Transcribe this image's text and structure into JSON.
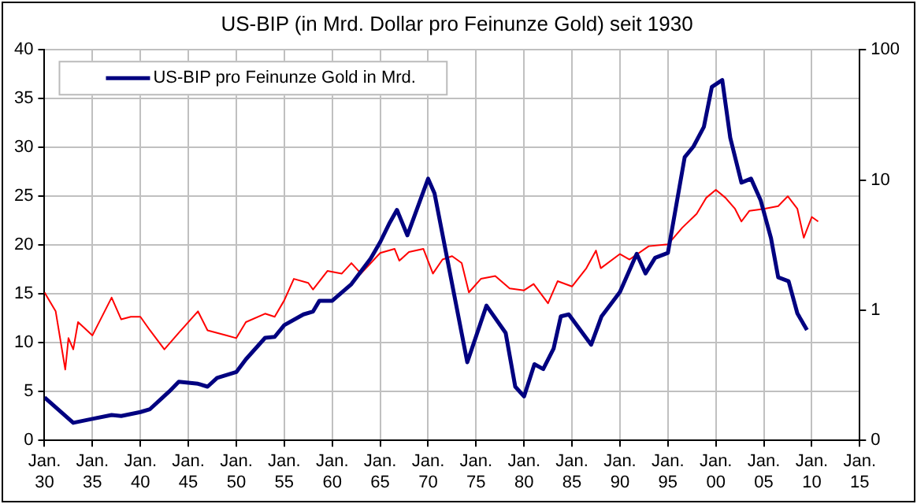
{
  "chart_data": {
    "type": "line",
    "title": "US-BIP (in Mrd. Dollar pro Feinunze Gold) seit 1930",
    "xlim": [
      "1930-01",
      "2015-01"
    ],
    "xticks": [
      {
        "value": "1930-01",
        "label": "Jan. 30"
      },
      {
        "value": "1935-01",
        "label": "Jan. 35"
      },
      {
        "value": "1940-01",
        "label": "Jan. 40"
      },
      {
        "value": "1945-01",
        "label": "Jan. 45"
      },
      {
        "value": "1950-01",
        "label": "Jan. 50"
      },
      {
        "value": "1955-01",
        "label": "Jan. 55"
      },
      {
        "value": "1960-01",
        "label": "Jan. 60"
      },
      {
        "value": "1965-01",
        "label": "Jan. 65"
      },
      {
        "value": "1970-01",
        "label": "Jan. 70"
      },
      {
        "value": "1975-01",
        "label": "Jan. 75"
      },
      {
        "value": "1980-01",
        "label": "Jan. 80"
      },
      {
        "value": "1985-01",
        "label": "Jan. 85"
      },
      {
        "value": "1990-01",
        "label": "Jan. 90"
      },
      {
        "value": "1995-01",
        "label": "Jan. 95"
      },
      {
        "value": "2000-01",
        "label": "Jan. 00"
      },
      {
        "value": "2005-01",
        "label": "Jan. 05"
      },
      {
        "value": "2010-01",
        "label": "Jan. 10"
      },
      {
        "value": "2015-01",
        "label": "Jan. 15"
      }
    ],
    "ylim": [
      0,
      40
    ],
    "yticks": [
      0,
      5,
      10,
      15,
      20,
      25,
      30,
      35,
      40
    ],
    "y2lim": [
      0.1,
      100
    ],
    "y2ticks": [
      {
        "value": 0.1,
        "label": "0"
      },
      1,
      10,
      100
    ],
    "log": "y2",
    "grid": true,
    "legend": "top left",
    "series": [
      {
        "name": "US-BIP pro Feinunze Gold in Mrd.",
        "color": "#000080",
        "x": [
          "1930-01",
          "1933-01",
          "1935-01",
          "1937-01",
          "1938-01",
          "1940-01",
          "1941-01",
          "1943-01",
          "1944-01",
          "1946-01",
          "1947-01",
          "1948-01",
          "1950-01",
          "1951-01",
          "1953-01",
          "1954-01",
          "1955-01",
          "1957-01",
          "1958-01",
          "1958-09",
          "1960-01",
          "1962-01",
          "1964-01",
          "1965-01",
          "1966-01",
          "1966-10",
          "1967-11",
          "1970-01",
          "1970-09",
          "1974-02",
          "1976-02",
          "1978-02",
          "1979-02",
          "1980-01",
          "1981-02",
          "1982-01",
          "1983-02",
          "1983-11",
          "1984-09",
          "1987-01",
          "1988-02",
          "1990-01",
          "1991-10",
          "1992-09",
          "1993-09",
          "1995-01",
          "1996-10",
          "1997-09",
          "1998-10",
          "1999-08",
          "2000-09",
          "2001-07",
          "2002-09",
          "2003-09",
          "2004-09",
          "2005-10",
          "2006-07",
          "2007-08",
          "2008-07",
          "2009-07"
        ],
        "values": [
          4.4,
          1.8,
          2.2,
          2.6,
          2.5,
          2.9,
          3.2,
          5,
          6,
          5.8,
          5.5,
          6.4,
          7,
          8.3,
          10.5,
          10.6,
          11.8,
          12.9,
          13.2,
          14.3,
          14.3,
          16,
          18.6,
          20.3,
          22.3,
          23.6,
          21,
          26.8,
          25.3,
          8,
          13.8,
          11,
          5.5,
          4.5,
          7.8,
          7.3,
          9.4,
          12.7,
          12.9,
          9.8,
          12.7,
          15.2,
          19.1,
          17.1,
          18.7,
          19.2,
          29,
          30.1,
          32.1,
          36.2,
          36.9,
          31,
          26.4,
          26.8,
          24.6,
          20.7,
          16.7,
          16.3,
          13,
          11.3
        ]
      },
      {
        "color": "#ff0000",
        "axis": "y2",
        "x": [
          "1930-01",
          "1931-03",
          "1932-03",
          "1932-07",
          "1933-01",
          "1933-07",
          "1935-01",
          "1937-01",
          "1938-01",
          "1939-01",
          "1940-01",
          "1941-01",
          "1942-07",
          "1944-01",
          "1946-01",
          "1947-01",
          "1949-01",
          "1950-01",
          "1951-01",
          "1953-01",
          "1954-01",
          "1955-01",
          "1956-01",
          "1957-07",
          "1958-01",
          "1959-07",
          "1961-01",
          "1962-01",
          "1963-01",
          "1965-01",
          "1966-07",
          "1967-01",
          "1968-01",
          "1969-07",
          "1970-07",
          "1971-07",
          "1972-07",
          "1973-07",
          "1974-04",
          "1975-07",
          "1977-01",
          "1978-07",
          "1980-01",
          "1981-01",
          "1982-07",
          "1983-07",
          "1985-01",
          "1986-07",
          "1987-07",
          "1988-01",
          "1990-01",
          "1991-01",
          "1993-01",
          "1995-01",
          "1996-07",
          "1998-01",
          "1999-01",
          "2000-01",
          "2001-01",
          "2002-01",
          "2002-09",
          "2003-07",
          "2005-01",
          "2006-07",
          "2007-07",
          "2008-07",
          "2009-03",
          "2010-01",
          "2010-09"
        ],
        "values": [
          1.37,
          0.98,
          0.35,
          0.61,
          0.5,
          0.81,
          0.64,
          1.25,
          0.85,
          0.89,
          0.89,
          0.7,
          0.5,
          0.67,
          0.98,
          0.7,
          0.64,
          0.61,
          0.81,
          0.94,
          0.89,
          1.19,
          1.74,
          1.62,
          1.44,
          2,
          1.91,
          2.3,
          1.91,
          2.75,
          2.96,
          2.4,
          2.8,
          2.96,
          1.91,
          2.45,
          2.6,
          2.3,
          1.37,
          1.74,
          1.83,
          1.47,
          1.42,
          1.59,
          1.13,
          1.67,
          1.52,
          2.1,
          2.87,
          2.1,
          2.7,
          2.45,
          3.1,
          3.2,
          4.3,
          5.5,
          7.3,
          8.4,
          7.3,
          6,
          4.8,
          5.8,
          6,
          6.3,
          7.5,
          6,
          3.6,
          5.2,
          4.8
        ]
      }
    ]
  }
}
